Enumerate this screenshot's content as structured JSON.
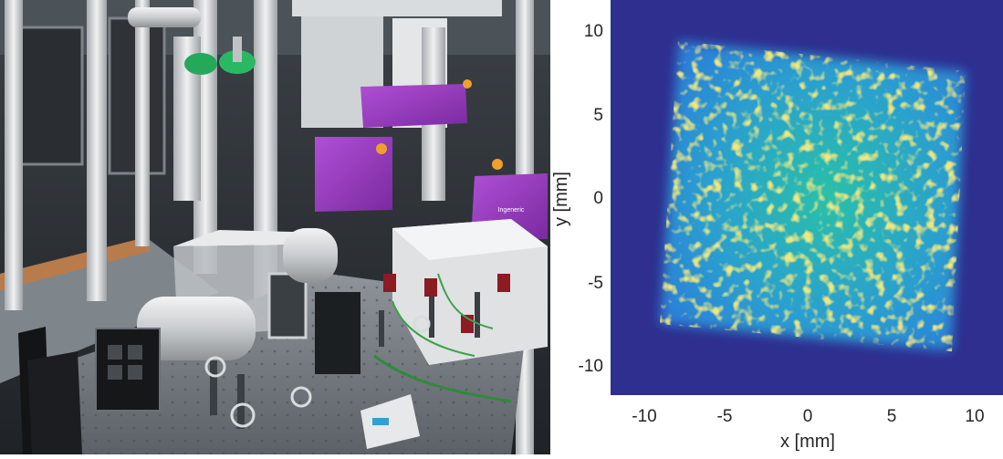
{
  "photo": {
    "subject": "laser-optics-lab-photo",
    "enclosure_label": "Ingeneric"
  },
  "beam_profile": {
    "xlabel": "x [mm]",
    "ylabel": "y [mm]",
    "x_ticks": [
      "-10",
      "-5",
      "0",
      "5",
      "10"
    ],
    "y_ticks": [
      "10",
      "5",
      "0",
      "-5",
      "-10"
    ],
    "colors": {
      "background": "#2e2f8f",
      "low": "#2a7fd8",
      "mid": "#29b6b0",
      "high": "#d8c93a"
    }
  }
}
